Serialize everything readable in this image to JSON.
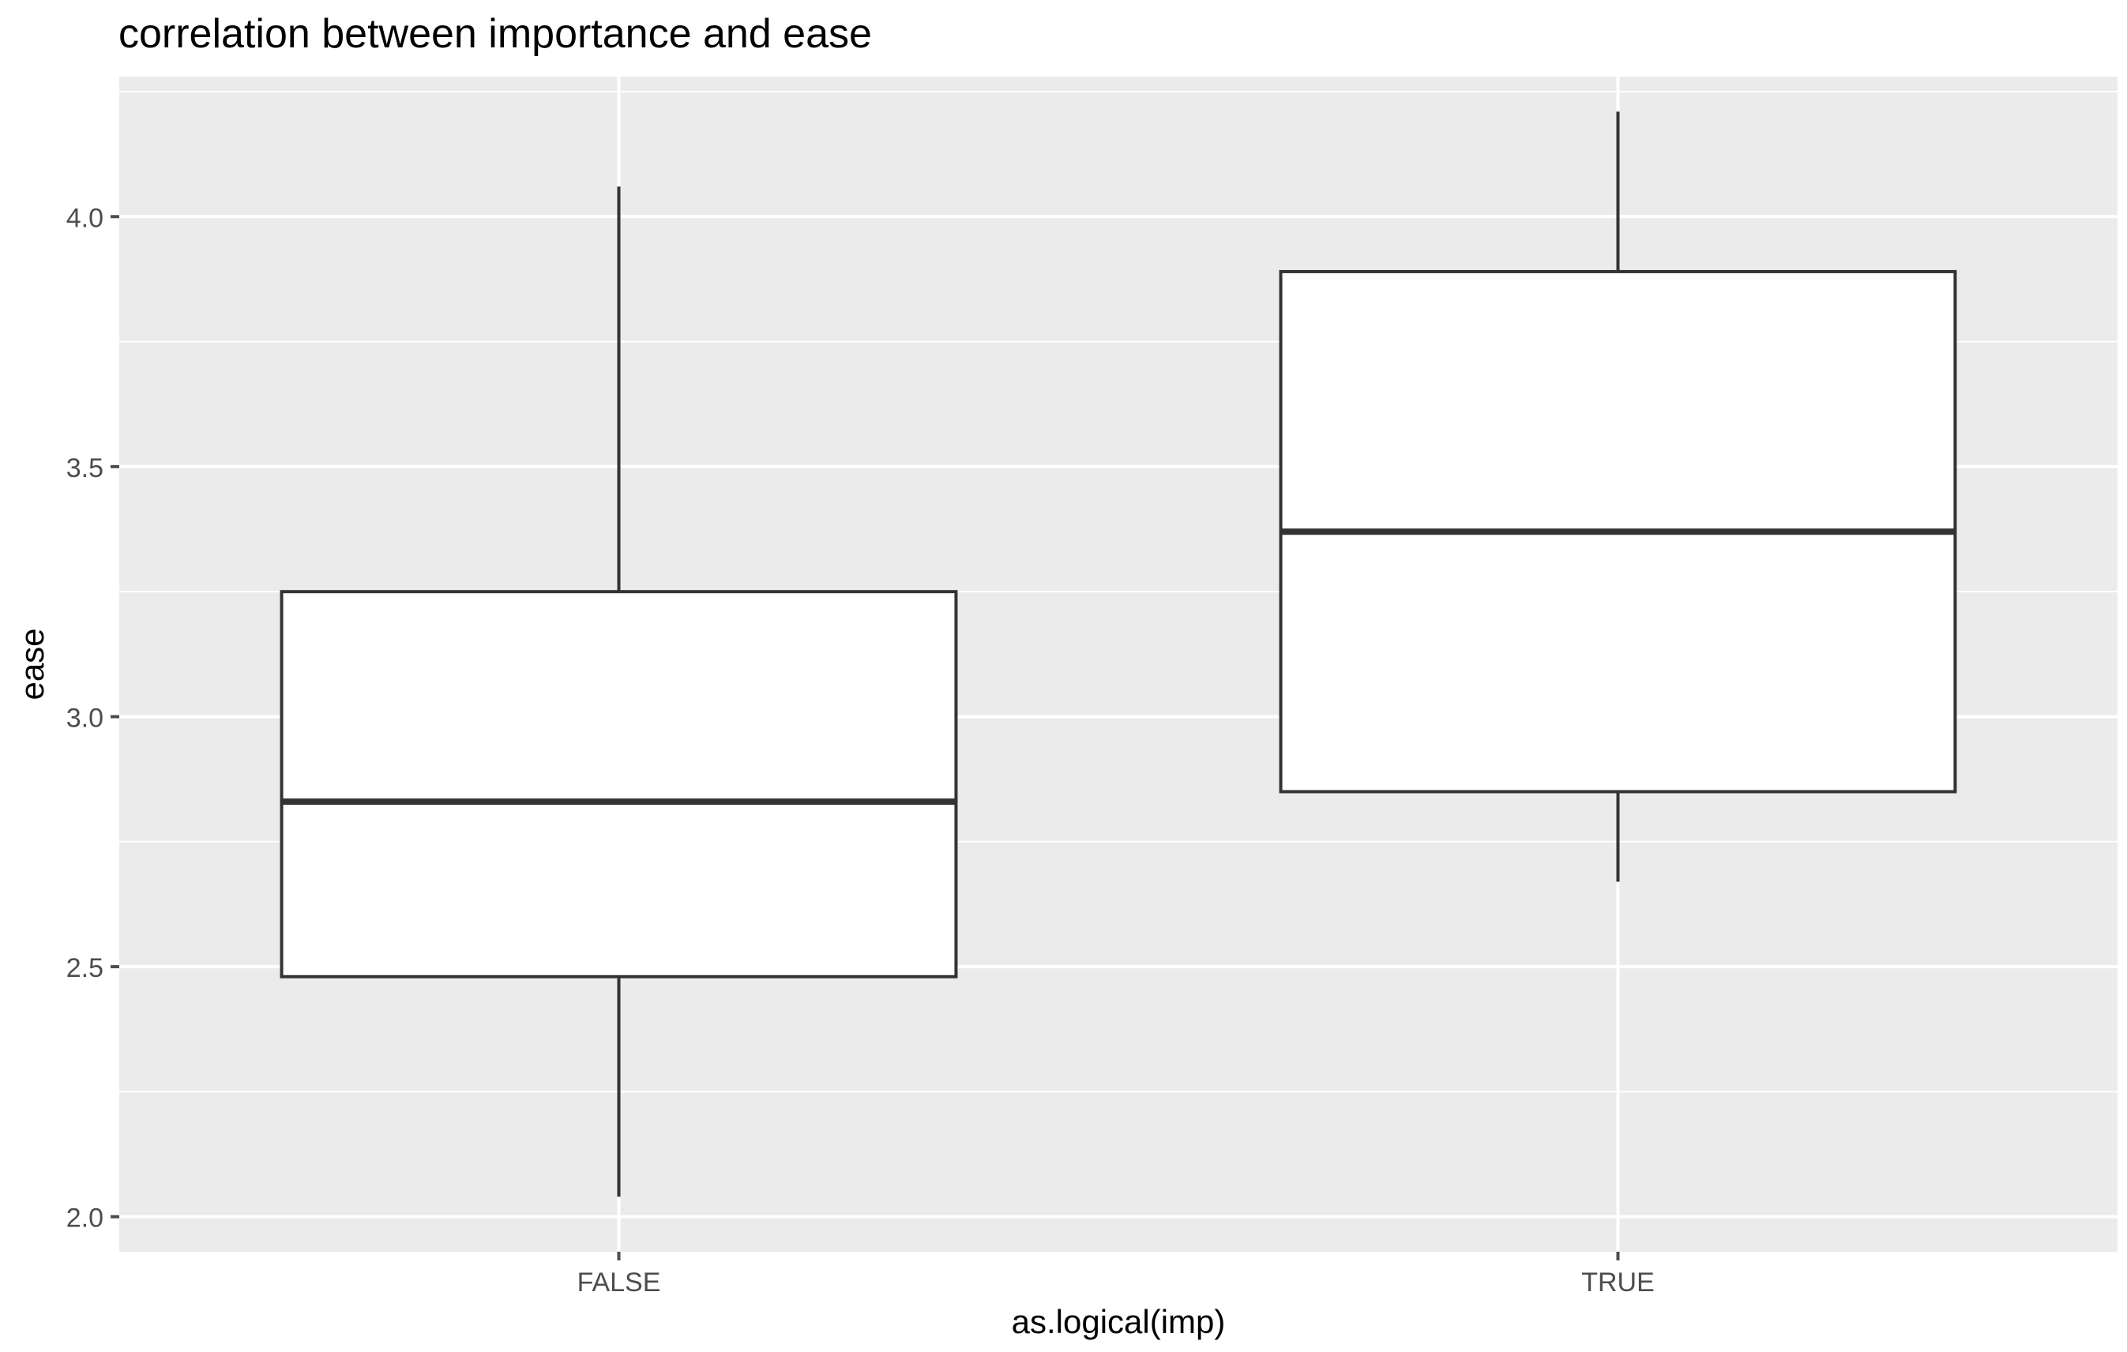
{
  "chart_data": {
    "type": "boxplot",
    "title": "correlation between importance and ease",
    "xlabel": "as.logical(imp)",
    "ylabel": "ease",
    "categories": [
      "FALSE",
      "TRUE"
    ],
    "boxes": [
      {
        "category": "FALSE",
        "whisker_low": 2.04,
        "q1": 2.48,
        "median": 2.83,
        "q3": 3.25,
        "whisker_high": 4.06
      },
      {
        "category": "TRUE",
        "whisker_low": 2.67,
        "q1": 2.85,
        "median": 3.37,
        "q3": 3.89,
        "whisker_high": 4.21
      }
    ],
    "yticks": [
      2.0,
      2.5,
      3.0,
      3.5,
      4.0
    ],
    "ytick_labels": [
      "2.0",
      "2.5",
      "3.0",
      "3.5",
      "4.0"
    ],
    "ylim": [
      1.93,
      4.28
    ],
    "grid": true,
    "colors": {
      "panel_background": "#EBEBEB",
      "grid_line": "#FFFFFF",
      "box_fill": "#FFFFFF",
      "box_stroke": "#333333",
      "axis_text": "#4D4D4D",
      "title_text": "#000000"
    }
  }
}
